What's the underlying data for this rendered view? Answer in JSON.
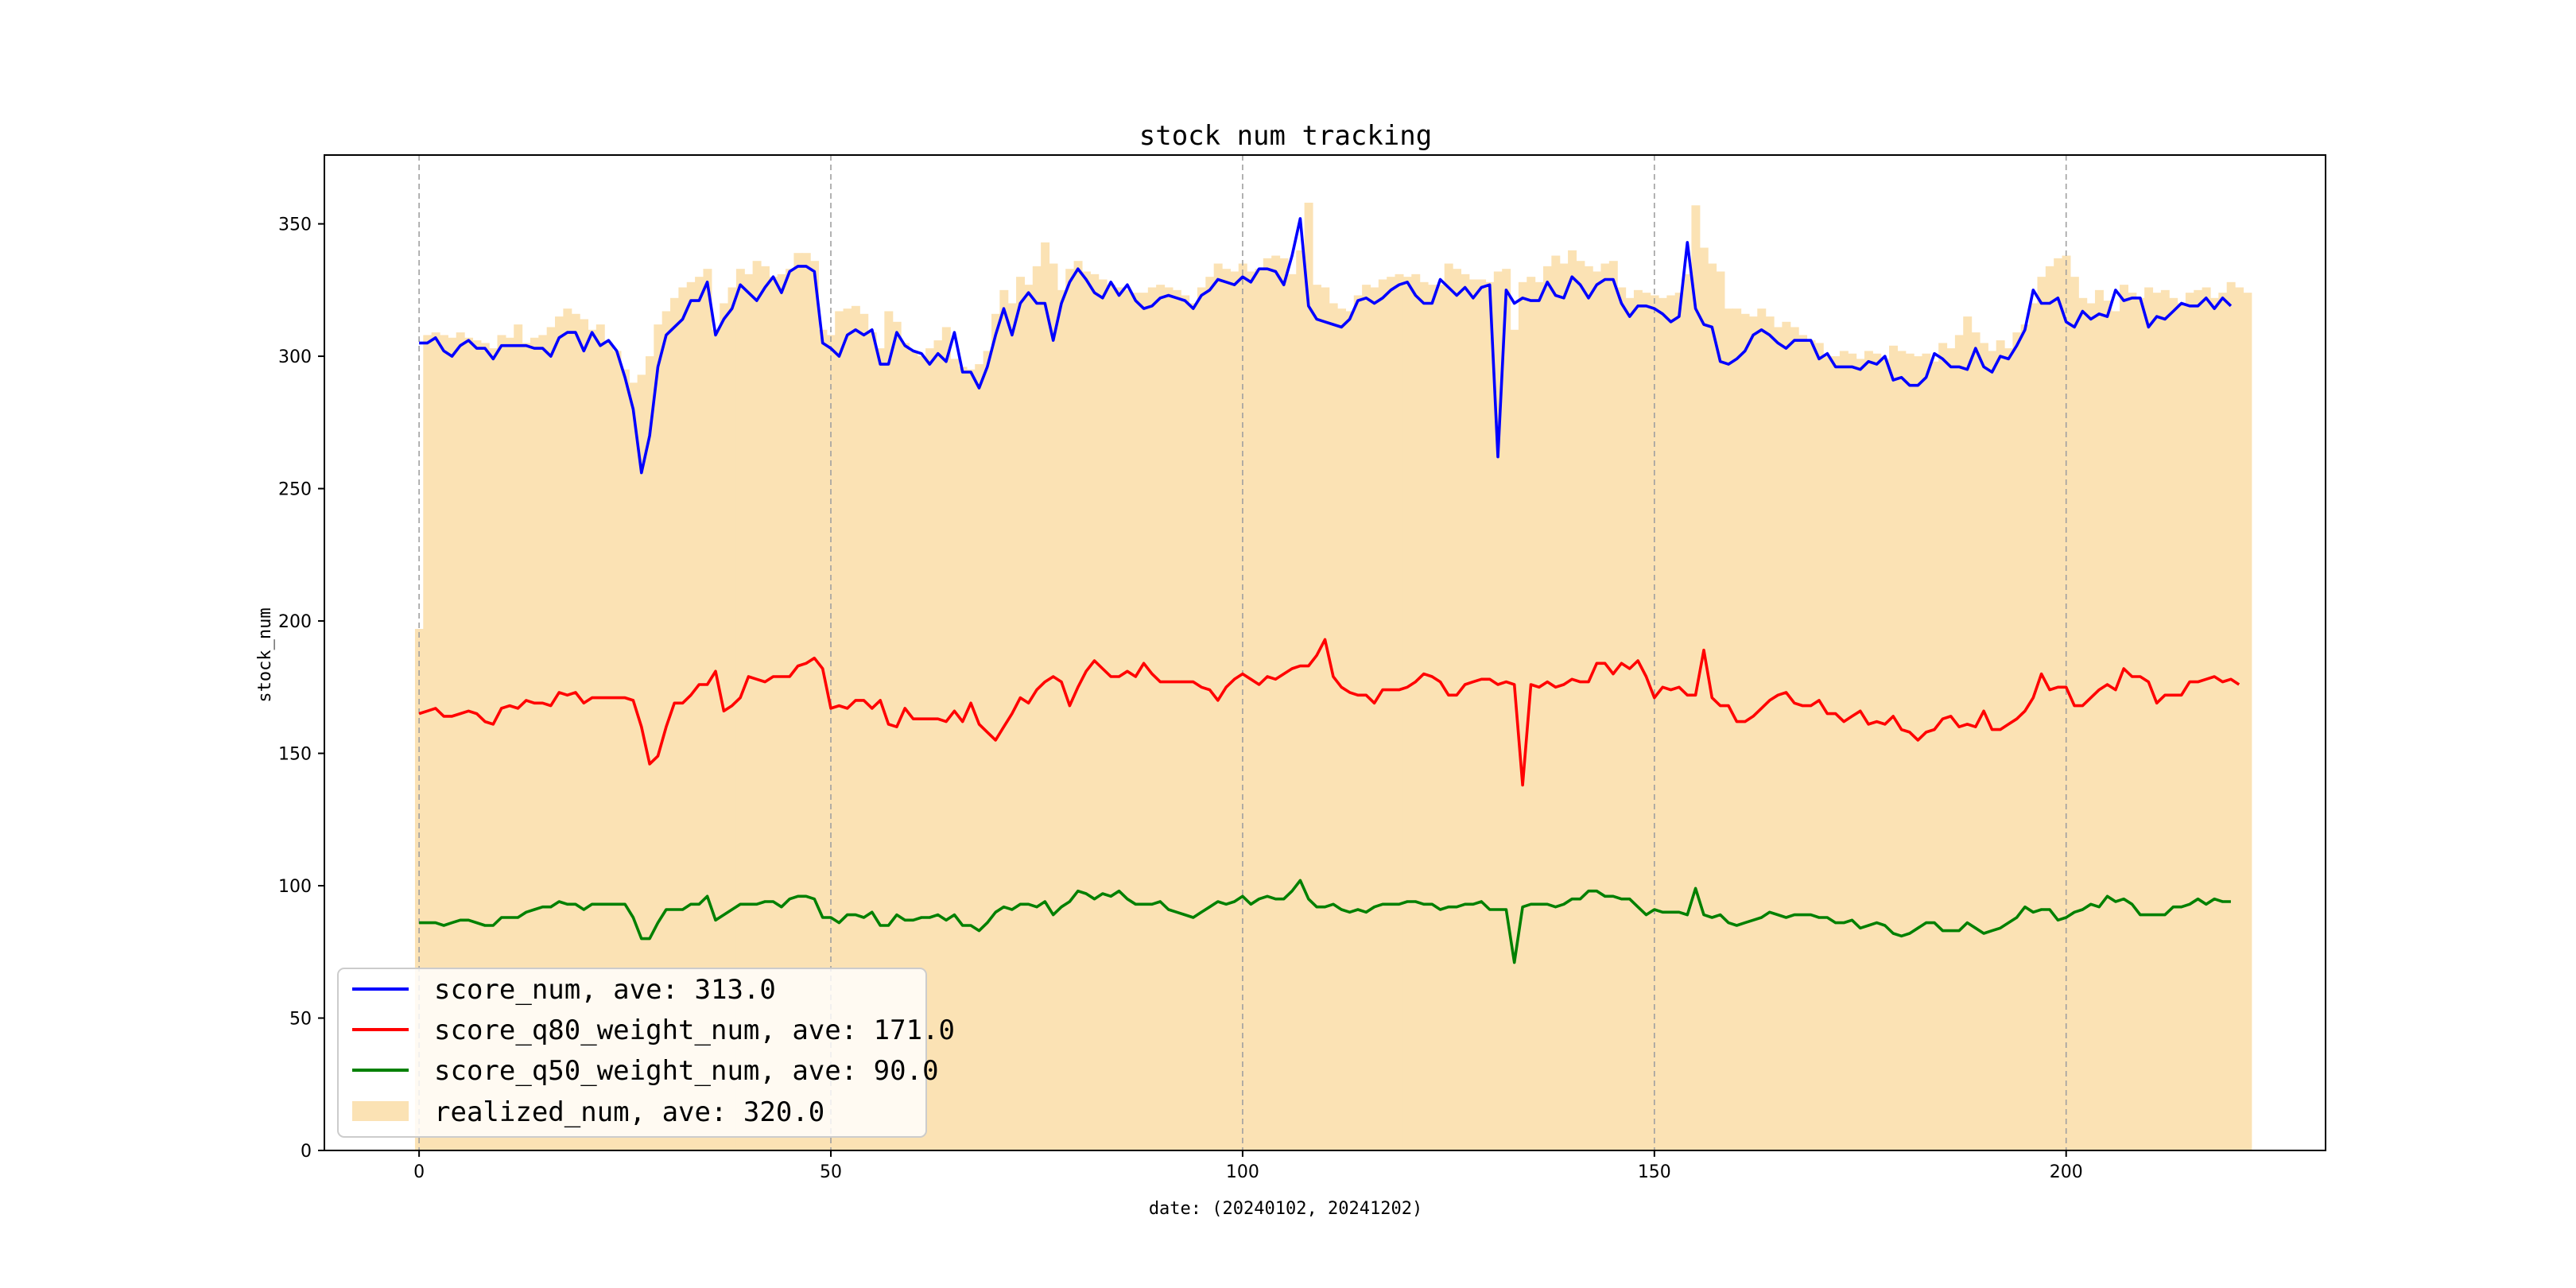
{
  "chart_data": {
    "type": "line",
    "title": "stock num tracking",
    "xlabel": "date: (20240102, 20241202)",
    "ylabel": "stock_num",
    "xlim": [
      -11.5,
      231.5
    ],
    "ylim": [
      0,
      376
    ],
    "xticks": [
      0,
      50,
      100,
      150,
      200
    ],
    "yticks": [
      0,
      50,
      100,
      150,
      200,
      250,
      300,
      350
    ],
    "vgrid": "dashed gray at x ticks",
    "legend_position": "lower-left",
    "bar_series": {
      "name": "realized_num, ave: 320.0",
      "color": "#fbe2b4",
      "values": [
        197,
        308,
        309,
        308,
        307,
        309,
        307,
        306,
        305,
        303,
        308,
        307,
        312,
        305,
        307,
        308,
        311,
        315,
        318,
        316,
        314,
        310,
        312,
        305,
        302,
        295,
        290,
        293,
        300,
        312,
        317,
        322,
        326,
        328,
        330,
        333,
        310,
        320,
        326,
        333,
        331,
        336,
        334,
        330,
        331,
        333,
        339,
        339,
        336,
        310,
        308,
        317,
        318,
        319,
        316,
        309,
        303,
        317,
        313,
        305,
        302,
        300,
        303,
        306,
        311,
        299,
        296,
        295,
        297,
        302,
        316,
        325,
        320,
        330,
        327,
        334,
        343,
        335,
        325,
        333,
        336,
        332,
        331,
        329,
        327,
        326,
        325,
        324,
        324,
        326,
        327,
        326,
        325,
        323,
        320,
        326,
        330,
        335,
        333,
        332,
        335,
        332,
        333,
        337,
        338,
        337,
        331,
        340,
        358,
        327,
        326,
        320,
        318,
        317,
        323,
        327,
        326,
        329,
        330,
        331,
        330,
        331,
        328,
        327,
        327,
        335,
        333,
        331,
        329,
        329,
        328,
        332,
        333,
        310,
        328,
        330,
        328,
        334,
        338,
        335,
        340,
        336,
        334,
        332,
        335,
        336,
        326,
        322,
        325,
        324,
        323,
        322,
        323,
        324,
        331,
        357,
        341,
        335,
        332,
        318,
        318,
        316,
        315,
        318,
        315,
        311,
        313,
        311,
        308,
        306,
        305,
        300,
        300,
        302,
        301,
        299,
        302,
        301,
        299,
        304,
        302,
        301,
        300,
        301,
        298,
        305,
        303,
        308,
        315,
        309,
        305,
        302,
        306,
        303,
        309,
        312,
        320,
        330,
        334,
        337,
        338,
        330,
        322,
        320,
        325,
        321,
        317,
        327,
        324,
        322,
        326,
        324,
        325,
        322,
        320,
        324,
        325,
        326,
        322,
        324,
        328,
        326,
        324
      ]
    },
    "series": [
      {
        "name": "score_num, ave: 313.0",
        "color": "#0000ff",
        "values": [
          305,
          305,
          307,
          302,
          300,
          304,
          306,
          303,
          303,
          299,
          304,
          304,
          304,
          304,
          303,
          303,
          300,
          307,
          309,
          309,
          302,
          309,
          304,
          306,
          302,
          292,
          280,
          256,
          270,
          296,
          308,
          311,
          314,
          321,
          321,
          328,
          308,
          314,
          318,
          327,
          324,
          321,
          326,
          330,
          324,
          332,
          334,
          334,
          332,
          305,
          303,
          300,
          308,
          310,
          308,
          310,
          297,
          297,
          309,
          304,
          302,
          301,
          297,
          301,
          298,
          309,
          294,
          294,
          288,
          296,
          308,
          318,
          308,
          320,
          324,
          320,
          320,
          306,
          320,
          328,
          333,
          329,
          324,
          322,
          328,
          323,
          327,
          321,
          318,
          319,
          322,
          323,
          322,
          321,
          318,
          323,
          325,
          329,
          328,
          327,
          330,
          328,
          333,
          333,
          332,
          327,
          338,
          352,
          319,
          314,
          313,
          312,
          311,
          314,
          321,
          322,
          320,
          322,
          325,
          327,
          328,
          323,
          320,
          320,
          329,
          326,
          323,
          326,
          322,
          326,
          327,
          262,
          325,
          320,
          322,
          321,
          321,
          328,
          323,
          322,
          330,
          327,
          322,
          327,
          329,
          329,
          320,
          315,
          319,
          319,
          318,
          316,
          313,
          315,
          343,
          318,
          312,
          311,
          298,
          297,
          299,
          302,
          308,
          310,
          308,
          305,
          303,
          306,
          306,
          306,
          299,
          301,
          296,
          296,
          296,
          295,
          298,
          297,
          300,
          291,
          292,
          289,
          289,
          292,
          301,
          299,
          296,
          296,
          295,
          303,
          296,
          294,
          300,
          299,
          304,
          310,
          325,
          320,
          320,
          322,
          313,
          311,
          317,
          314,
          316,
          315,
          325,
          321,
          322,
          322,
          311,
          315,
          314,
          317,
          320,
          319,
          319,
          322,
          318,
          322,
          319
        ]
      },
      {
        "name": "score_q80_weight_num, ave: 171.0",
        "color": "#ff0000",
        "values": [
          165,
          166,
          167,
          164,
          164,
          165,
          166,
          165,
          162,
          161,
          167,
          168,
          167,
          170,
          169,
          169,
          168,
          173,
          172,
          173,
          169,
          171,
          171,
          171,
          171,
          171,
          170,
          160,
          146,
          149,
          160,
          169,
          169,
          172,
          176,
          176,
          181,
          166,
          168,
          171,
          179,
          178,
          177,
          179,
          179,
          179,
          183,
          184,
          186,
          182,
          167,
          168,
          167,
          170,
          170,
          167,
          170,
          161,
          160,
          167,
          163,
          163,
          163,
          163,
          162,
          166,
          162,
          169,
          161,
          158,
          155,
          160,
          165,
          171,
          169,
          174,
          177,
          179,
          177,
          168,
          175,
          181,
          185,
          182,
          179,
          179,
          181,
          179,
          184,
          180,
          177,
          177,
          177,
          177,
          177,
          175,
          174,
          170,
          175,
          178,
          180,
          178,
          176,
          179,
          178,
          180,
          182,
          183,
          183,
          187,
          193,
          179,
          175,
          173,
          172,
          172,
          169,
          174,
          174,
          174,
          175,
          177,
          180,
          179,
          177,
          172,
          172,
          176,
          177,
          178,
          178,
          176,
          177,
          176,
          138,
          176,
          175,
          177,
          175,
          176,
          178,
          177,
          177,
          184,
          184,
          180,
          184,
          182,
          185,
          179,
          171,
          175,
          174,
          175,
          172,
          172,
          189,
          171,
          168,
          168,
          162,
          162,
          164,
          167,
          170,
          172,
          173,
          169,
          168,
          168,
          170,
          165,
          165,
          162,
          164,
          166,
          161,
          162,
          161,
          164,
          159,
          158,
          155,
          158,
          159,
          163,
          164,
          160,
          161,
          160,
          166,
          159,
          159,
          161,
          163,
          166,
          171,
          180,
          174,
          175,
          175,
          168,
          168,
          171,
          174,
          176,
          174,
          182,
          179,
          179,
          177,
          169,
          172,
          172,
          172,
          177,
          177,
          178,
          179,
          177,
          178,
          176
        ]
      },
      {
        "name": "score_q50_weight_num, ave: 90.0",
        "color": "#008000",
        "values": [
          86,
          86,
          86,
          85,
          86,
          87,
          87,
          86,
          85,
          85,
          88,
          88,
          88,
          90,
          91,
          92,
          92,
          94,
          93,
          93,
          91,
          93,
          93,
          93,
          93,
          93,
          88,
          80,
          80,
          86,
          91,
          91,
          91,
          93,
          93,
          96,
          87,
          89,
          91,
          93,
          93,
          93,
          94,
          94,
          92,
          95,
          96,
          96,
          95,
          88,
          88,
          86,
          89,
          89,
          88,
          90,
          85,
          85,
          89,
          87,
          87,
          88,
          88,
          89,
          87,
          89,
          85,
          85,
          83,
          86,
          90,
          92,
          91,
          93,
          93,
          92,
          94,
          89,
          92,
          94,
          98,
          97,
          95,
          97,
          96,
          98,
          95,
          93,
          93,
          93,
          94,
          91,
          90,
          89,
          88,
          90,
          92,
          94,
          93,
          94,
          96,
          93,
          95,
          96,
          95,
          95,
          98,
          102,
          95,
          92,
          92,
          93,
          91,
          90,
          91,
          90,
          92,
          93,
          93,
          93,
          94,
          94,
          93,
          93,
          91,
          92,
          92,
          93,
          93,
          94,
          91,
          91,
          91,
          71,
          92,
          93,
          93,
          93,
          92,
          93,
          95,
          95,
          98,
          98,
          96,
          96,
          95,
          95,
          92,
          89,
          91,
          90,
          90,
          90,
          89,
          99,
          89,
          88,
          89,
          86,
          85,
          86,
          87,
          88,
          90,
          89,
          88,
          89,
          89,
          89,
          88,
          88,
          86,
          86,
          87,
          84,
          85,
          86,
          85,
          82,
          81,
          82,
          84,
          86,
          86,
          83,
          83,
          83,
          86,
          84,
          82,
          83,
          84,
          86,
          88,
          92,
          90,
          91,
          91,
          87,
          88,
          90,
          91,
          93,
          92,
          96,
          94,
          95,
          93,
          89,
          89,
          89,
          89,
          92,
          92,
          93,
          95,
          93,
          95,
          94,
          94
        ]
      }
    ]
  }
}
